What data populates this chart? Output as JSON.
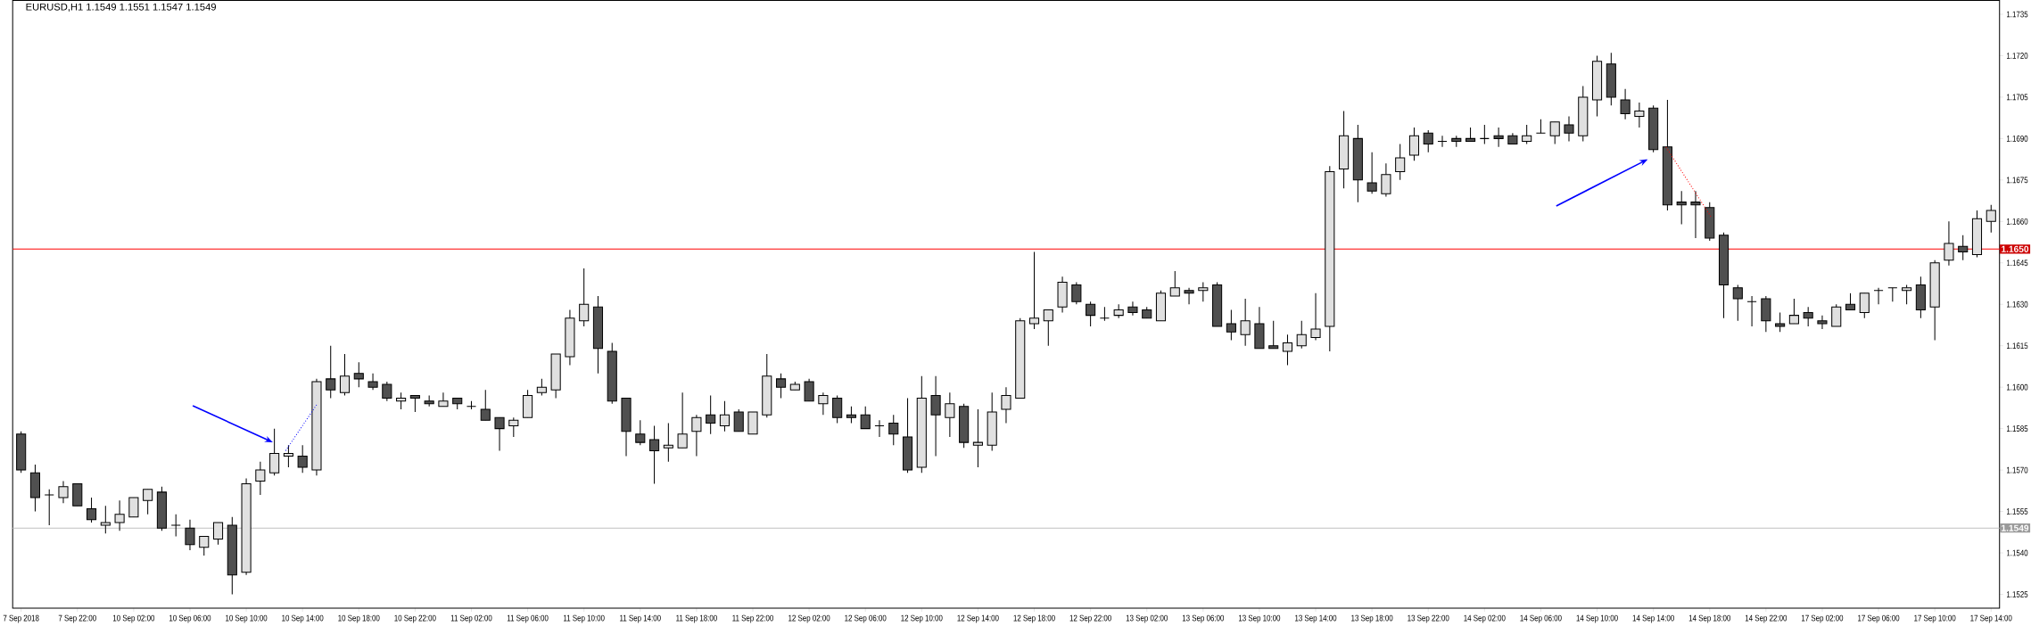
{
  "chart_data": {
    "type": "candlestick",
    "title": "EURUSD,H1  1.1549 1.1551 1.1547 1.1549",
    "categories": [
      "7 Sep 2018",
      null,
      null,
      null,
      "7 Sep 22:00",
      null,
      null,
      null,
      "10 Sep 02:00",
      null,
      null,
      null,
      "10 Sep 06:00",
      null,
      null,
      null,
      "10 Sep 10:00",
      null,
      null,
      null,
      "10 Sep 14:00",
      null,
      null,
      null,
      "10 Sep 18:00",
      null,
      null,
      null,
      "10 Sep 22:00",
      null,
      null,
      null,
      "11 Sep 02:00",
      null,
      null,
      null,
      "11 Sep 06:00",
      null,
      null,
      null,
      "11 Sep 10:00",
      null,
      null,
      null,
      "11 Sep 14:00",
      null,
      null,
      null,
      "11 Sep 18:00",
      null,
      null,
      null,
      "11 Sep 22:00",
      null,
      null,
      null,
      "12 Sep 02:00",
      null,
      null,
      null,
      "12 Sep 06:00",
      null,
      null,
      null,
      "12 Sep 10:00",
      null,
      null,
      null,
      "12 Sep 14:00",
      null,
      null,
      null,
      "12 Sep 18:00",
      null,
      null,
      null,
      "12 Sep 22:00",
      null,
      null,
      null,
      "13 Sep 02:00",
      null,
      null,
      null,
      "13 Sep 06:00",
      null,
      null,
      null,
      "13 Sep 10:00",
      null,
      null,
      null,
      "13 Sep 14:00",
      null,
      null,
      null,
      "13 Sep 18:00",
      null,
      null,
      null,
      "13 Sep 22:00",
      null,
      null,
      null,
      "14 Sep 02:00",
      null,
      null,
      null,
      "14 Sep 06:00",
      null,
      null,
      null,
      "14 Sep 10:00",
      null,
      null,
      null,
      "14 Sep 14:00",
      null,
      null,
      null,
      "14 Sep 18:00",
      null,
      null,
      null,
      "14 Sep 22:00",
      null,
      null,
      null,
      "17 Sep 02:00",
      null,
      null,
      null,
      "17 Sep 06:00",
      null,
      null,
      null,
      "17 Sep 10:00",
      null,
      null,
      null,
      "17 Sep 14:00"
    ],
    "ohlc": [
      [
        1.1583,
        1.1584,
        1.1569,
        1.157
      ],
      [
        1.1569,
        1.1572,
        1.1555,
        1.156
      ],
      [
        1.1561,
        1.1563,
        1.155,
        1.1561
      ],
      [
        1.156,
        1.1566,
        1.1558,
        1.1564
      ],
      [
        1.1565,
        1.1565,
        1.1557,
        1.1557
      ],
      [
        1.1556,
        1.156,
        1.1551,
        1.1552
      ],
      [
        1.155,
        1.1557,
        1.1547,
        1.1551
      ],
      [
        1.1551,
        1.1559,
        1.1548,
        1.1554
      ],
      [
        1.1553,
        1.156,
        1.1553,
        1.156
      ],
      [
        1.1559,
        1.1563,
        1.1554,
        1.1563
      ],
      [
        1.1562,
        1.1564,
        1.1548,
        1.1549
      ],
      [
        1.155,
        1.1554,
        1.1546,
        1.155
      ],
      [
        1.1549,
        1.1552,
        1.1541,
        1.1543
      ],
      [
        1.1542,
        1.1546,
        1.1539,
        1.1546
      ],
      [
        1.1545,
        1.1551,
        1.1543,
        1.1551
      ],
      [
        1.155,
        1.1553,
        1.1525,
        1.1532
      ],
      [
        1.1533,
        1.1567,
        1.1532,
        1.1565
      ],
      [
        1.1566,
        1.1573,
        1.1561,
        1.157
      ],
      [
        1.1569,
        1.1585,
        1.1568,
        1.1576
      ],
      [
        1.1575,
        1.1579,
        1.1571,
        1.1576
      ],
      [
        1.1575,
        1.1579,
        1.1569,
        1.1571
      ],
      [
        1.157,
        1.1603,
        1.1568,
        1.1602
      ],
      [
        1.1603,
        1.1615,
        1.1596,
        1.1599
      ],
      [
        1.1598,
        1.1612,
        1.1597,
        1.1604
      ],
      [
        1.1605,
        1.1609,
        1.16,
        1.1603
      ],
      [
        1.1602,
        1.1605,
        1.1599,
        1.16
      ],
      [
        1.1601,
        1.1602,
        1.1595,
        1.1596
      ],
      [
        1.1595,
        1.1598,
        1.1592,
        1.1596
      ],
      [
        1.1597,
        1.1597,
        1.1591,
        1.1596
      ],
      [
        1.1595,
        1.1597,
        1.1593,
        1.1594
      ],
      [
        1.1593,
        1.1598,
        1.1593,
        1.1595
      ],
      [
        1.1596,
        1.1596,
        1.1592,
        1.1594
      ],
      [
        1.1593,
        1.1595,
        1.1592,
        1.1593
      ],
      [
        1.1592,
        1.1599,
        1.1588,
        1.1588
      ],
      [
        1.1589,
        1.1589,
        1.1577,
        1.1585
      ],
      [
        1.1586,
        1.1589,
        1.1582,
        1.1588
      ],
      [
        1.1589,
        1.1599,
        1.1589,
        1.1597
      ],
      [
        1.1598,
        1.1603,
        1.1597,
        1.16
      ],
      [
        1.1599,
        1.1612,
        1.1596,
        1.1612
      ],
      [
        1.1611,
        1.1628,
        1.1608,
        1.1625
      ],
      [
        1.1624,
        1.1643,
        1.1622,
        1.163
      ],
      [
        1.1629,
        1.1633,
        1.1605,
        1.1614
      ],
      [
        1.1613,
        1.1616,
        1.1594,
        1.1595
      ],
      [
        1.1596,
        1.1596,
        1.1575,
        1.1584
      ],
      [
        1.1583,
        1.1588,
        1.1579,
        1.158
      ],
      [
        1.1581,
        1.1586,
        1.1565,
        1.1577
      ],
      [
        1.1578,
        1.1587,
        1.1573,
        1.1579
      ],
      [
        1.1578,
        1.1598,
        1.1578,
        1.1583
      ],
      [
        1.1584,
        1.159,
        1.1575,
        1.1589
      ],
      [
        1.159,
        1.1597,
        1.1583,
        1.1587
      ],
      [
        1.1586,
        1.1595,
        1.1584,
        1.159
      ],
      [
        1.1591,
        1.1592,
        1.1584,
        1.1584
      ],
      [
        1.1583,
        1.1591,
        1.1583,
        1.1591
      ],
      [
        1.159,
        1.1612,
        1.1589,
        1.1604
      ],
      [
        1.1603,
        1.1605,
        1.1596,
        1.16
      ],
      [
        1.1599,
        1.1602,
        1.1599,
        1.1601
      ],
      [
        1.1602,
        1.1603,
        1.1595,
        1.1595
      ],
      [
        1.1594,
        1.1598,
        1.159,
        1.1597
      ],
      [
        1.1596,
        1.1597,
        1.1587,
        1.1589
      ],
      [
        1.159,
        1.1593,
        1.1587,
        1.1589
      ],
      [
        1.159,
        1.1593,
        1.1585,
        1.1585
      ],
      [
        1.1586,
        1.1588,
        1.1582,
        1.1586
      ],
      [
        1.1587,
        1.159,
        1.1579,
        1.1583
      ],
      [
        1.1582,
        1.1596,
        1.1569,
        1.157
      ],
      [
        1.1571,
        1.1604,
        1.1569,
        1.1596
      ],
      [
        1.1597,
        1.1604,
        1.1575,
        1.159
      ],
      [
        1.1589,
        1.1598,
        1.1582,
        1.1594
      ],
      [
        1.1593,
        1.1594,
        1.1578,
        1.158
      ],
      [
        1.1579,
        1.1592,
        1.1571,
        1.158
      ],
      [
        1.1579,
        1.1598,
        1.1577,
        1.1591
      ],
      [
        1.1592,
        1.16,
        1.1587,
        1.1597
      ],
      [
        1.1596,
        1.1625,
        1.1596,
        1.1624
      ],
      [
        1.1623,
        1.1649,
        1.1621,
        1.1625
      ],
      [
        1.1624,
        1.1628,
        1.1615,
        1.1628
      ],
      [
        1.1629,
        1.164,
        1.1627,
        1.1638
      ],
      [
        1.1637,
        1.1638,
        1.163,
        1.1631
      ],
      [
        1.163,
        1.1631,
        1.1622,
        1.1626
      ],
      [
        1.1625,
        1.1629,
        1.1624,
        1.1625
      ],
      [
        1.1626,
        1.163,
        1.1625,
        1.1628
      ],
      [
        1.1629,
        1.1631,
        1.1626,
        1.1627
      ],
      [
        1.1628,
        1.1629,
        1.1625,
        1.1625
      ],
      [
        1.1624,
        1.1635,
        1.1624,
        1.1634
      ],
      [
        1.1633,
        1.1642,
        1.1633,
        1.1636
      ],
      [
        1.1635,
        1.1636,
        1.163,
        1.1634
      ],
      [
        1.1635,
        1.1638,
        1.1631,
        1.1636
      ],
      [
        1.1637,
        1.1638,
        1.1622,
        1.1622
      ],
      [
        1.1623,
        1.1628,
        1.1617,
        1.162
      ],
      [
        1.1619,
        1.1632,
        1.1615,
        1.1624
      ],
      [
        1.1623,
        1.1629,
        1.1614,
        1.1614
      ],
      [
        1.1615,
        1.1624,
        1.1614,
        1.1614
      ],
      [
        1.1613,
        1.1619,
        1.1608,
        1.1616
      ],
      [
        1.1615,
        1.1624,
        1.1614,
        1.1619
      ],
      [
        1.1618,
        1.1634,
        1.1617,
        1.1621
      ],
      [
        1.1622,
        1.168,
        1.1613,
        1.1678
      ],
      [
        1.1679,
        1.17,
        1.1672,
        1.1691
      ],
      [
        1.169,
        1.1695,
        1.1667,
        1.1675
      ],
      [
        1.1674,
        1.1685,
        1.167,
        1.1671
      ],
      [
        1.167,
        1.1681,
        1.1669,
        1.1677
      ],
      [
        1.1678,
        1.1688,
        1.1675,
        1.1683
      ],
      [
        1.1684,
        1.1694,
        1.1682,
        1.1691
      ],
      [
        1.1692,
        1.1693,
        1.1685,
        1.1688
      ],
      [
        1.1689,
        1.1691,
        1.1687,
        1.1689
      ],
      [
        1.169,
        1.1691,
        1.1687,
        1.1689
      ],
      [
        1.169,
        1.1694,
        1.1689,
        1.1689
      ],
      [
        1.169,
        1.1695,
        1.1688,
        1.169
      ],
      [
        1.1691,
        1.1694,
        1.1687,
        1.169
      ],
      [
        1.1691,
        1.1692,
        1.1688,
        1.1688
      ],
      [
        1.1689,
        1.1695,
        1.1688,
        1.1691
      ],
      [
        1.1692,
        1.1697,
        1.1692,
        1.1692
      ],
      [
        1.1691,
        1.1696,
        1.1688,
        1.1696
      ],
      [
        1.1695,
        1.1698,
        1.1689,
        1.1692
      ],
      [
        1.1691,
        1.1709,
        1.1689,
        1.1705
      ],
      [
        1.1704,
        1.172,
        1.1698,
        1.1718
      ],
      [
        1.1717,
        1.1721,
        1.1702,
        1.1705
      ],
      [
        1.1704,
        1.1708,
        1.1697,
        1.1699
      ],
      [
        1.1698,
        1.1703,
        1.1694,
        1.17
      ],
      [
        1.1701,
        1.1702,
        1.1685,
        1.1686
      ],
      [
        1.1687,
        1.1704,
        1.1664,
        1.1666
      ],
      [
        1.1667,
        1.1671,
        1.1659,
        1.1666
      ],
      [
        1.1667,
        1.1671,
        1.1654,
        1.1666
      ],
      [
        1.1665,
        1.1667,
        1.1653,
        1.1654
      ],
      [
        1.1655,
        1.1656,
        1.1625,
        1.1637
      ],
      [
        1.1636,
        1.1637,
        1.1624,
        1.1632
      ],
      [
        1.1631,
        1.1633,
        1.1622,
        1.1631
      ],
      [
        1.1632,
        1.1633,
        1.162,
        1.1624
      ],
      [
        1.1623,
        1.1627,
        1.162,
        1.1622
      ],
      [
        1.1623,
        1.1632,
        1.1623,
        1.1626
      ],
      [
        1.1627,
        1.1629,
        1.1622,
        1.1625
      ],
      [
        1.1624,
        1.1626,
        1.1621,
        1.1623
      ],
      [
        1.1622,
        1.163,
        1.1622,
        1.1629
      ],
      [
        1.163,
        1.1634,
        1.1628,
        1.1628
      ],
      [
        1.1627,
        1.1634,
        1.1625,
        1.1634
      ],
      [
        1.1635,
        1.1636,
        1.163,
        1.1635
      ],
      [
        1.1636,
        1.1636,
        1.1631,
        1.1636
      ],
      [
        1.1635,
        1.1637,
        1.163,
        1.1636
      ],
      [
        1.1637,
        1.164,
        1.1625,
        1.1628
      ],
      [
        1.1629,
        1.1646,
        1.1617,
        1.1645
      ],
      [
        1.1646,
        1.166,
        1.1644,
        1.1652
      ],
      [
        1.1651,
        1.1655,
        1.1646,
        1.1649
      ],
      [
        1.1648,
        1.1664,
        1.1647,
        1.1661
      ],
      [
        1.166,
        1.1666,
        1.1656,
        1.1664
      ]
    ],
    "colors": [
      "#505050",
      "#505050",
      "#000000",
      "#e0e0e0",
      "#505050",
      "#505050",
      "#e0e0e0",
      "#e0e0e0",
      "#e0e0e0",
      "#e0e0e0",
      "#505050",
      "#000000",
      "#505050",
      "#e0e0e0",
      "#e0e0e0",
      "#505050",
      "#e0e0e0",
      "#e0e0e0",
      "#e0e0e0",
      "#e0e0e0",
      "#505050",
      "#e0e0e0",
      "#505050",
      "#e0e0e0",
      "#505050",
      "#505050",
      "#505050",
      "#e0e0e0",
      "#505050",
      "#505050",
      "#e0e0e0",
      "#505050",
      "#000000",
      "#505050",
      "#505050",
      "#e0e0e0",
      "#e0e0e0",
      "#e0e0e0",
      "#e0e0e0",
      "#e0e0e0",
      "#e0e0e0",
      "#505050",
      "#505050",
      "#505050",
      "#505050",
      "#505050",
      "#e0e0e0",
      "#e0e0e0",
      "#e0e0e0",
      "#505050",
      "#e0e0e0",
      "#505050",
      "#e0e0e0",
      "#e0e0e0",
      "#505050",
      "#e0e0e0",
      "#505050",
      "#e0e0e0",
      "#505050",
      "#505050",
      "#505050",
      "#000000",
      "#505050",
      "#505050",
      "#e0e0e0",
      "#505050",
      "#e0e0e0",
      "#505050",
      "#e0e0e0",
      "#e0e0e0",
      "#e0e0e0",
      "#e0e0e0",
      "#e0e0e0",
      "#e0e0e0",
      "#e0e0e0",
      "#505050",
      "#505050",
      "#000000",
      "#e0e0e0",
      "#505050",
      "#505050",
      "#e0e0e0",
      "#e0e0e0",
      "#505050",
      "#e0e0e0",
      "#505050",
      "#505050",
      "#e0e0e0",
      "#505050",
      "#505050",
      "#e0e0e0",
      "#e0e0e0",
      "#e0e0e0",
      "#e0e0e0",
      "#e0e0e0",
      "#505050",
      "#505050",
      "#e0e0e0",
      "#e0e0e0",
      "#e0e0e0",
      "#505050",
      "#000000",
      "#505050",
      "#505050",
      "#000000",
      "#505050",
      "#505050",
      "#e0e0e0",
      "#000000",
      "#e0e0e0",
      "#505050",
      "#e0e0e0",
      "#e0e0e0",
      "#505050",
      "#505050",
      "#e0e0e0",
      "#505050",
      "#505050",
      "#505050",
      "#505050",
      "#505050",
      "#505050",
      "#505050",
      "#000000",
      "#505050",
      "#505050",
      "#e0e0e0",
      "#505050",
      "#505050",
      "#e0e0e0",
      "#505050",
      "#e0e0e0",
      "#000000",
      "#000000",
      "#e0e0e0",
      "#505050",
      "#e0e0e0",
      "#e0e0e0",
      "#505050",
      "#e0e0e0",
      "#e0e0e0"
    ],
    "ylim": [
      1.152,
      1.174
    ],
    "yticks": [
      {
        "value": 1.1525,
        "label": "1.1525"
      },
      {
        "value": 1.154,
        "label": "1.1540"
      },
      {
        "value": 1.1555,
        "label": "1.1555"
      },
      {
        "value": 1.157,
        "label": "1.1570"
      },
      {
        "value": 1.1585,
        "label": "1.1585"
      },
      {
        "value": 1.16,
        "label": "1.1600"
      },
      {
        "value": 1.1615,
        "label": "1.1615"
      },
      {
        "value": 1.163,
        "label": "1.1630"
      },
      {
        "value": 1.1645,
        "label": "1.1645"
      },
      {
        "value": 1.166,
        "label": "1.1660"
      },
      {
        "value": 1.1675,
        "label": "1.1675"
      },
      {
        "value": 1.169,
        "label": "1.1690"
      },
      {
        "value": 1.1705,
        "label": "1.1705"
      },
      {
        "value": 1.172,
        "label": "1.1720"
      },
      {
        "value": 1.1735,
        "label": "1.1735"
      }
    ],
    "ref_lines": [
      {
        "axis": "y",
        "value": 1.165,
        "label": "1.1650",
        "color": "#ff0000"
      },
      {
        "axis": "y",
        "value": 1.1549,
        "label": "1.1549",
        "color": "#c0c0c0"
      }
    ]
  }
}
